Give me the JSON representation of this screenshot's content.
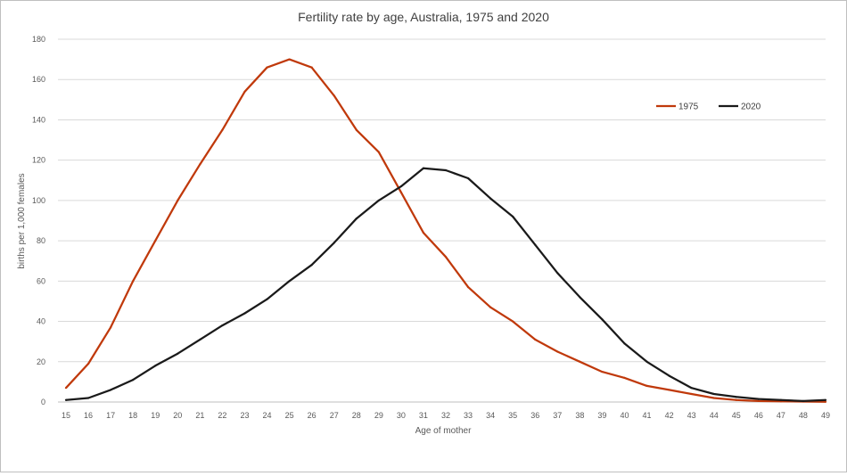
{
  "chart_data": {
    "type": "line",
    "title": "Fertility rate by age, Australia, 1975 and 2020",
    "xlabel": "Age of mother",
    "ylabel": "births per 1,000 females",
    "ylim": [
      0,
      180
    ],
    "yticks": [
      0,
      20,
      40,
      60,
      80,
      100,
      120,
      140,
      160,
      180
    ],
    "grid": true,
    "legend_position": "top-right",
    "categories": [
      15,
      16,
      17,
      18,
      19,
      20,
      21,
      22,
      23,
      24,
      25,
      26,
      27,
      28,
      29,
      30,
      31,
      32,
      33,
      34,
      35,
      36,
      37,
      38,
      39,
      40,
      41,
      42,
      43,
      44,
      45,
      46,
      47,
      48,
      49
    ],
    "series": [
      {
        "name": "1975",
        "color": "#c0390b",
        "values": [
          7,
          19,
          37,
          60,
          80,
          100,
          118,
          135,
          154,
          166,
          170,
          166,
          152,
          135,
          124,
          104,
          84,
          72,
          57,
          47,
          40,
          31,
          25,
          20,
          15,
          12,
          8,
          6,
          4,
          2,
          1,
          0.5,
          0.3,
          0.2,
          0.1
        ]
      },
      {
        "name": "2020",
        "color": "#1a1a1a",
        "values": [
          1,
          2,
          6,
          11,
          18,
          24,
          31,
          38,
          44,
          51,
          60,
          68,
          79,
          91,
          100,
          107,
          116,
          115,
          111,
          101,
          92,
          78,
          64,
          52,
          41,
          29,
          20,
          13,
          7,
          4,
          2.5,
          1.5,
          1,
          0.5,
          1
        ]
      }
    ]
  }
}
